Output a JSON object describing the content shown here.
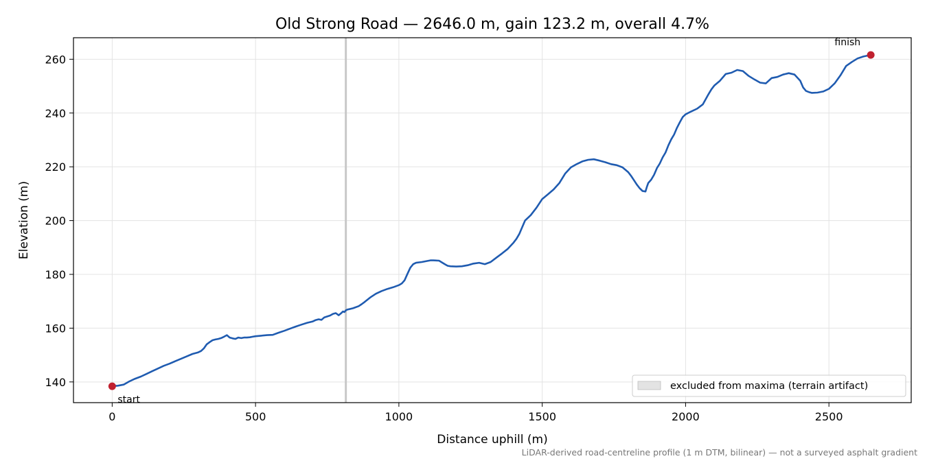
{
  "chart_data": {
    "type": "line",
    "title": "Old Strong Road — 2646.0 m, gain 123.2 m, overall 4.7%",
    "xlabel": "Distance uphill (m)",
    "ylabel": "Elevation (m)",
    "xlim": [
      -135,
      2787
    ],
    "ylim": [
      132.3,
      268
    ],
    "x_ticks": [
      0,
      500,
      1000,
      1500,
      2000,
      2500
    ],
    "y_ticks": [
      140,
      160,
      180,
      200,
      220,
      240,
      260
    ],
    "grid": true,
    "legend": {
      "placement": "lower-right",
      "entries": [
        "excluded from maxima (terrain artifact)"
      ]
    },
    "excluded_x": 815,
    "colors": {
      "line": "#1f5bb0",
      "marker": "#c0202f",
      "excluded": "#c8c8c8",
      "grid": "#e3e3e3"
    },
    "endpoints": [
      {
        "label": "start",
        "x": 0,
        "y": 138.4
      },
      {
        "label": "finish",
        "x": 2646,
        "y": 261.6
      }
    ],
    "series": [
      {
        "x": [
          0,
          20,
          40,
          60,
          80,
          100,
          120,
          140,
          160,
          180,
          200,
          220,
          240,
          260,
          280,
          300,
          310,
          320,
          330,
          340,
          350,
          360,
          370,
          380,
          390,
          400,
          410,
          420,
          430,
          440,
          450,
          460,
          470,
          480,
          490,
          500,
          520,
          540,
          560,
          580,
          600,
          620,
          640,
          660,
          680,
          700,
          710,
          720,
          730,
          740,
          760,
          770,
          780,
          790,
          800,
          805,
          810,
          815,
          820,
          840,
          860,
          870,
          880,
          900,
          920,
          940,
          960,
          980,
          1000,
          1010,
          1020,
          1030,
          1040,
          1050,
          1060,
          1080,
          1100,
          1110,
          1120,
          1140,
          1160,
          1170,
          1180,
          1200,
          1220,
          1240,
          1260,
          1280,
          1300,
          1320,
          1340,
          1360,
          1380,
          1400,
          1410,
          1420,
          1430,
          1440,
          1460,
          1480,
          1500,
          1520,
          1540,
          1560,
          1580,
          1600,
          1620,
          1640,
          1660,
          1680,
          1700,
          1720,
          1740,
          1760,
          1780,
          1800,
          1810,
          1820,
          1830,
          1840,
          1850,
          1860,
          1865,
          1870,
          1880,
          1890,
          1900,
          1910,
          1920,
          1930,
          1940,
          1950,
          1960,
          1970,
          1980,
          1990,
          2000,
          2020,
          2040,
          2060,
          2080,
          2090,
          2100,
          2120,
          2140,
          2160,
          2180,
          2200,
          2220,
          2240,
          2260,
          2280,
          2300,
          2320,
          2340,
          2360,
          2380,
          2400,
          2410,
          2420,
          2430,
          2440,
          2460,
          2480,
          2500,
          2520,
          2540,
          2560,
          2580,
          2600,
          2620,
          2646
        ],
        "values": [
          138.4,
          138.6,
          139.0,
          140.2,
          141.2,
          142.0,
          143.0,
          144.0,
          145.0,
          146.0,
          146.8,
          147.7,
          148.6,
          149.5,
          150.4,
          151.0,
          151.5,
          152.5,
          154.0,
          154.8,
          155.5,
          155.8,
          156.0,
          156.3,
          156.8,
          157.4,
          156.5,
          156.2,
          156.0,
          156.5,
          156.3,
          156.5,
          156.5,
          156.6,
          156.8,
          157.0,
          157.2,
          157.4,
          157.5,
          158.3,
          159.0,
          159.8,
          160.6,
          161.3,
          162.0,
          162.5,
          163.0,
          163.3,
          163.1,
          164.0,
          164.7,
          165.3,
          165.6,
          164.8,
          165.7,
          166.2,
          166.0,
          166.6,
          166.9,
          167.4,
          168.2,
          168.9,
          169.7,
          171.4,
          172.8,
          173.8,
          174.6,
          175.2,
          176.0,
          176.6,
          177.8,
          180.2,
          182.5,
          183.8,
          184.3,
          184.6,
          185.0,
          185.2,
          185.2,
          185.1,
          183.8,
          183.2,
          183.0,
          182.9,
          183.0,
          183.4,
          184.0,
          184.3,
          183.8,
          184.6,
          186.2,
          187.8,
          189.5,
          191.8,
          193.2,
          195.0,
          197.5,
          200.0,
          202.0,
          204.8,
          208.0,
          209.8,
          211.6,
          214.0,
          217.5,
          219.8,
          221.0,
          222.0,
          222.6,
          222.8,
          222.3,
          221.7,
          221.0,
          220.6,
          219.8,
          218.0,
          216.6,
          215.0,
          213.4,
          212.0,
          211.0,
          210.8,
          212.5,
          214.0,
          215.2,
          217.0,
          219.5,
          221.2,
          223.5,
          225.3,
          228.0,
          230.2,
          232.0,
          234.5,
          236.6,
          238.5,
          239.5,
          240.6,
          241.6,
          243.2,
          247.0,
          248.8,
          250.2,
          252.0,
          254.5,
          255.0,
          256.0,
          255.6,
          253.8,
          252.5,
          251.3,
          251.0,
          253.0,
          253.4,
          254.3,
          254.8,
          254.3,
          252.0,
          249.5,
          248.2,
          247.8,
          247.5,
          247.6,
          248.0,
          249.0,
          251.0,
          254.0,
          257.5,
          259.0,
          260.3,
          261.0,
          261.6
        ]
      }
    ]
  },
  "footnote": "LiDAR-derived road-centreline profile (1 m DTM, bilinear) — not a surveyed asphalt gradient"
}
